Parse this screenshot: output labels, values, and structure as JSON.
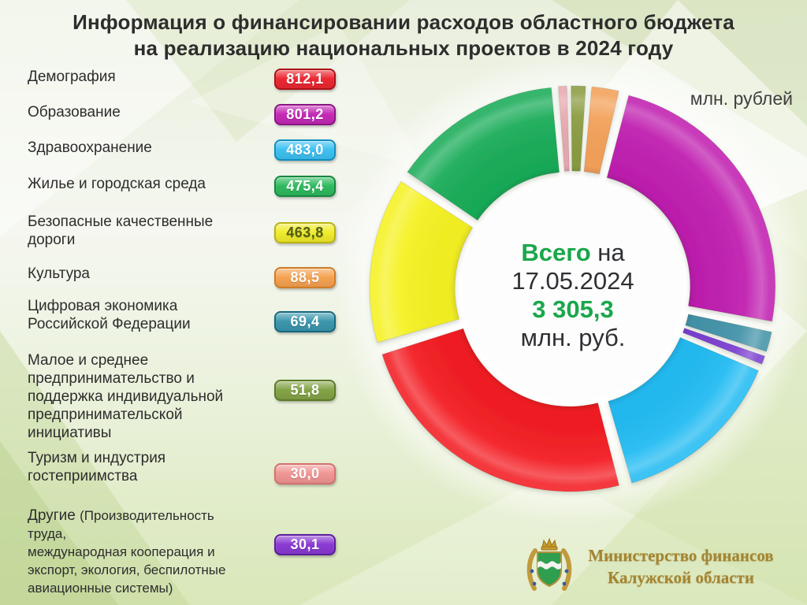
{
  "title": {
    "line1": "Информация о финансировании расходов областного бюджета",
    "line2": "на реализацию национальных проектов в 2024 году"
  },
  "units_label": "млн. рублей",
  "center": {
    "line1_bold": "Всего",
    "line1_rest": " на",
    "date": "17.05.2024",
    "total_value": "3 305,3",
    "units": "млн. руб.",
    "accent_color": "#1aa74b"
  },
  "legend": {
    "items": [
      {
        "label": "Демография",
        "value": "812,1",
        "badge": {
          "bg": "#ec2832",
          "edge": "#ad1118",
          "text": "#ffffff"
        }
      },
      {
        "label": "Образование",
        "value": "801,2",
        "badge": {
          "bg": "#c42ab6",
          "edge": "#8c1181",
          "text": "#ffffff"
        }
      },
      {
        "label": "Здравоохранение",
        "value": "483,0",
        "badge": {
          "bg": "#3ec1f2",
          "edge": "#0f8ec0",
          "text": "#ffffff"
        }
      },
      {
        "label": "Жилье и городская среда",
        "value": "475,4",
        "badge": {
          "bg": "#2fba5e",
          "edge": "#15873e",
          "text": "#ffffff"
        }
      },
      {
        "label": "Безопасные качественные\nдороги",
        "value": "463,8",
        "badge": {
          "bg": "#f0ec2d",
          "edge": "#b9b312",
          "text": "#535f16"
        }
      },
      {
        "label": "Культура",
        "value": "88,5",
        "badge": {
          "bg": "#f5a251",
          "edge": "#cf7c25",
          "text": "#ffffff"
        }
      },
      {
        "label": "Цифровая экономика\nРоссийской Федерации",
        "value": "69,4",
        "badge": {
          "bg": "#3b97ad",
          "edge": "#15687f",
          "text": "#ffffff"
        }
      },
      {
        "label": "Малое и среднее\nпредпринимательство и\nподдержка индивидуальной\nпредпринимательской\nинициативы",
        "value": "51,8",
        "badge": {
          "bg": "#84a447",
          "edge": "#5a7a24",
          "text": "#ffffff"
        }
      },
      {
        "label": "Туризм и индустрия\nгостеприимства",
        "value": "30,0",
        "badge": {
          "bg": "#f09694",
          "edge": "#d4706e",
          "text": "#ffffff"
        }
      },
      {
        "label": "Другие ",
        "note": "(Производительность\nтруда,\nмеждународная кооперация и\nэкспорт, экология, беспилотные\nавиационные системы)",
        "value": "30,1",
        "badge": {
          "bg": "#8b3bd3",
          "edge": "#5c1d9e",
          "text": "#ffffff"
        }
      }
    ]
  },
  "chart_data": {
    "type": "pie",
    "subtype": "donut",
    "title": "Информация о финансировании расходов областного бюджета на реализацию национальных проектов в 2024 году",
    "units": "млн. рублей",
    "total_label": "Всего на 17.05.2024",
    "total_value": 3305.3,
    "start_angle_deg": 14,
    "clockwise": true,
    "legend_position": "left",
    "slices": [
      {
        "name": "Образование",
        "value": 801.2,
        "color": "#c01fb0"
      },
      {
        "name": "Цифровая экономика Российской Федерации",
        "value": 69.4,
        "color": "#4493a9"
      },
      {
        "name": "Другие (Производительность труда, международная кооперация и экспорт, экология, беспилотные авиационные системы)",
        "value": 30.1,
        "color": "#7b3fd1"
      },
      {
        "name": "Здравоохранение",
        "value": 483.0,
        "color": "#22bbf2"
      },
      {
        "name": "Демография",
        "value": 812.1,
        "color": "#f31c22"
      },
      {
        "name": "Безопасные качественные дороги",
        "value": 463.8,
        "color": "#f5f122"
      },
      {
        "name": "Жилье и городская среда",
        "value": 475.4,
        "color": "#19ac58"
      },
      {
        "name": "Туризм и индустрия гостеприимства",
        "value": 30.0,
        "color": "#e7a9b0"
      },
      {
        "name": "Малое и среднее предпринимательство и поддержка индивидуальной предпринимательской инициативы",
        "value": 51.8,
        "color": "#8a9c41"
      },
      {
        "name": "Культура",
        "value": 88.5,
        "color": "#f3a159"
      }
    ]
  },
  "footer": {
    "org_line1": "Министерство финансов",
    "org_line2": "Калужской области"
  }
}
